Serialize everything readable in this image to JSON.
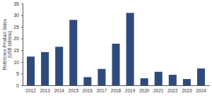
{
  "chart_data": {
    "type": "bar",
    "y_label": "Reference Product Sales (US$ billions)",
    "categories": [
      "2012",
      "2013",
      "2014",
      "2015",
      "2016",
      "2017",
      "2018",
      "2019",
      "2020",
      "2021",
      "2022",
      "2023",
      "2024"
    ],
    "values": [
      12.3,
      14.2,
      16.5,
      28,
      3.5,
      7,
      17.8,
      31,
      3,
      5.8,
      4.5,
      2.7,
      7.2
    ],
    "color": "#2f4b7c",
    "ylim": [
      0,
      35
    ],
    "yticks": [
      0,
      5,
      10,
      15,
      20,
      25,
      30,
      35
    ],
    "grid": false
  }
}
